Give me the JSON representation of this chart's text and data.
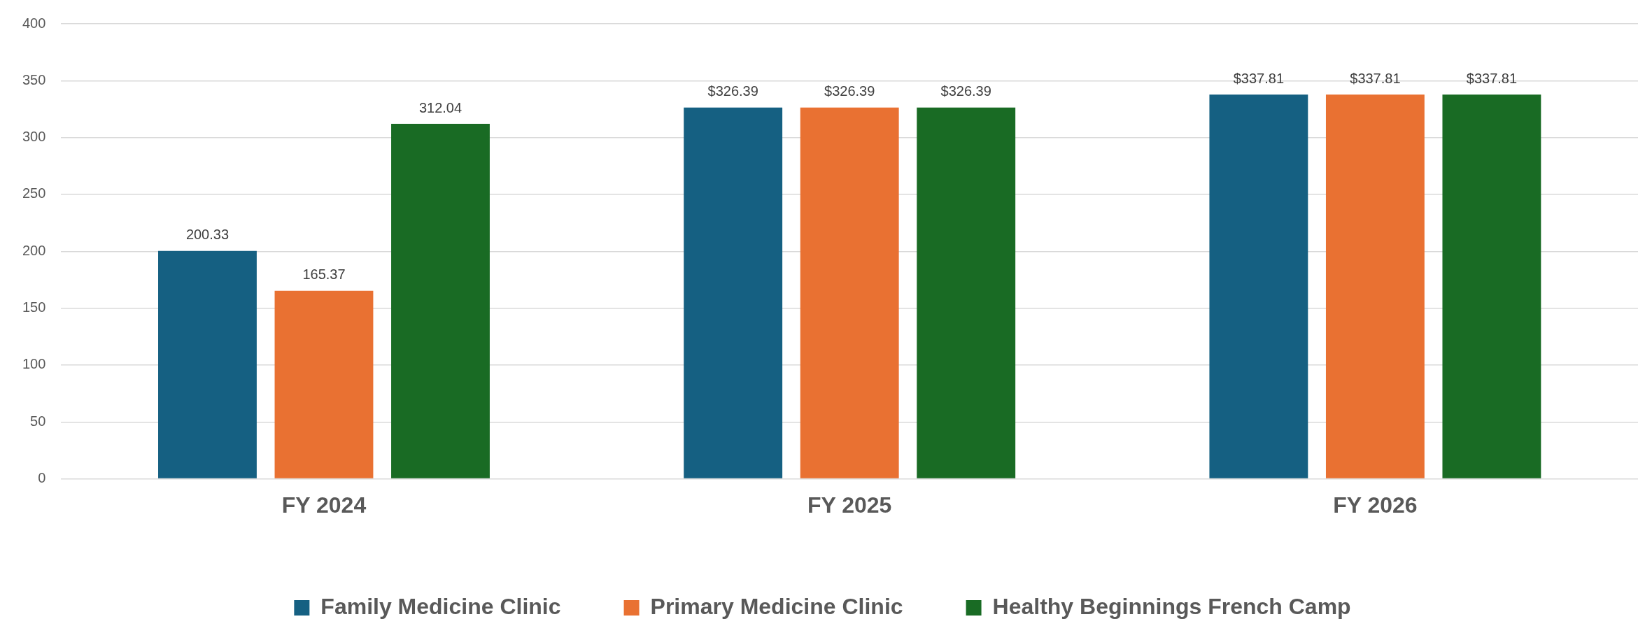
{
  "chart_data": {
    "type": "bar",
    "categories": [
      "FY 2024",
      "FY 2025",
      "FY 2026"
    ],
    "series": [
      {
        "name": "Family Medicine Clinic",
        "color": "#156082",
        "values": [
          200.33,
          326.39,
          337.81
        ],
        "value_labels": [
          "200.33",
          "$326.39",
          "$337.81"
        ]
      },
      {
        "name": "Primary Medicine Clinic",
        "color": "#e97132",
        "values": [
          165.37,
          326.39,
          337.81
        ],
        "value_labels": [
          "165.37",
          "$326.39",
          "$337.81"
        ]
      },
      {
        "name": "Healthy Beginnings French Camp",
        "color": "#196b24",
        "values": [
          312.04,
          326.39,
          337.81
        ],
        "value_labels": [
          "312.04",
          "$326.39",
          "$337.81"
        ]
      }
    ],
    "ylim": [
      0,
      400
    ],
    "yticks": [
      0,
      50,
      100,
      150,
      200,
      250,
      300,
      350,
      400
    ],
    "grid": "y",
    "legend": "bottom"
  }
}
